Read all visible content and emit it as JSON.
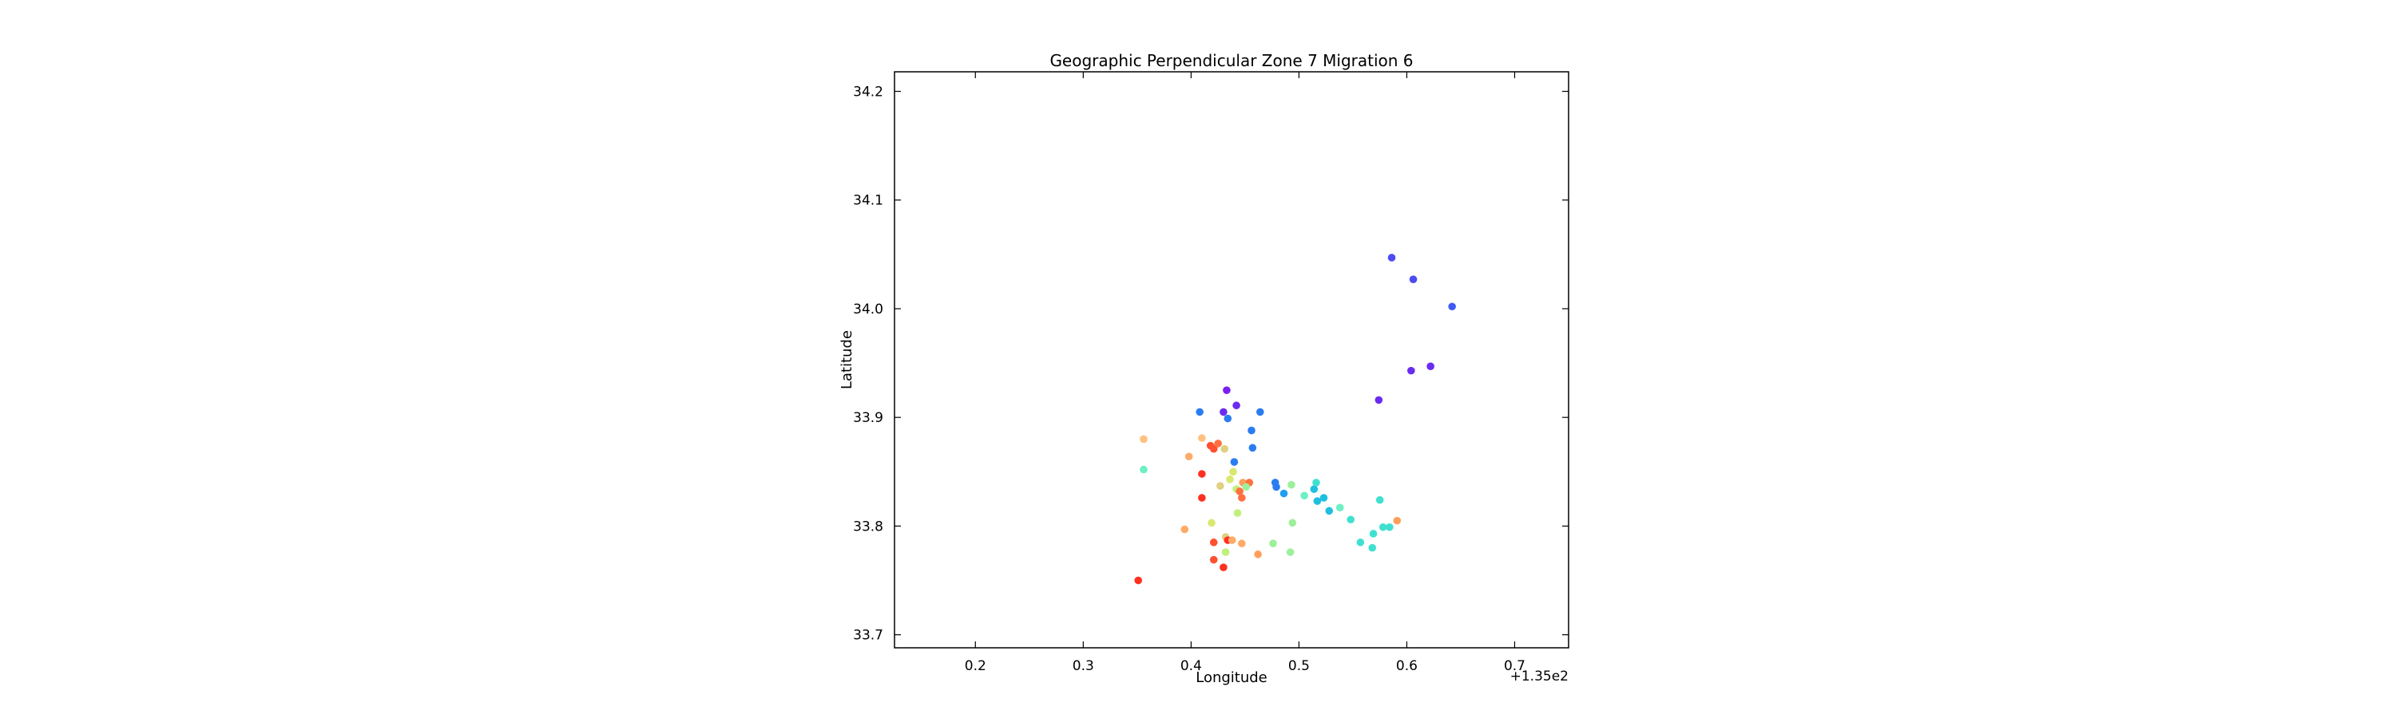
{
  "chart_data": {
    "type": "scatter",
    "title": "Geographic Perpendicular Zone 7 Migration 6",
    "xlabel": "Longitude",
    "ylabel": "Latitude",
    "x_offset_label": "+1.35e2",
    "xlim": [
      135.125,
      135.75
    ],
    "ylim": [
      33.688,
      34.218
    ],
    "xticks": [
      135.2,
      135.3,
      135.4,
      135.5,
      135.6,
      135.7
    ],
    "xtick_labels": [
      "0.2",
      "0.3",
      "0.4",
      "0.5",
      "0.6",
      "0.7"
    ],
    "yticks": [
      33.7,
      33.8,
      33.9,
      34.0,
      34.1,
      34.2
    ],
    "ytick_labels": [
      "33.7",
      "33.8",
      "33.9",
      "34.0",
      "34.1",
      "34.2"
    ],
    "grid": false,
    "legend": "none",
    "colormap": "rainbow",
    "points": [
      {
        "x": 135.586,
        "y": 34.047,
        "color": "#4c4cf2"
      },
      {
        "x": 135.606,
        "y": 34.027,
        "color": "#4c4cf2"
      },
      {
        "x": 135.642,
        "y": 34.002,
        "color": "#3f5af4"
      },
      {
        "x": 135.622,
        "y": 33.947,
        "color": "#6a2cf0"
      },
      {
        "x": 135.604,
        "y": 33.943,
        "color": "#6a2cf0"
      },
      {
        "x": 135.574,
        "y": 33.916,
        "color": "#6a2cf0"
      },
      {
        "x": 135.433,
        "y": 33.925,
        "color": "#7a1ff0"
      },
      {
        "x": 135.442,
        "y": 33.911,
        "color": "#6a2cf0"
      },
      {
        "x": 135.43,
        "y": 33.905,
        "color": "#6a2cf0"
      },
      {
        "x": 135.408,
        "y": 33.905,
        "color": "#2b7cf0"
      },
      {
        "x": 135.434,
        "y": 33.899,
        "color": "#2b7cf0"
      },
      {
        "x": 135.464,
        "y": 33.905,
        "color": "#2b7cf0"
      },
      {
        "x": 135.456,
        "y": 33.888,
        "color": "#2b7cf0"
      },
      {
        "x": 135.457,
        "y": 33.872,
        "color": "#2b7cf0"
      },
      {
        "x": 135.44,
        "y": 33.859,
        "color": "#2b7cf0"
      },
      {
        "x": 135.478,
        "y": 33.84,
        "color": "#2b7cf0"
      },
      {
        "x": 135.479,
        "y": 33.836,
        "color": "#2b7cf0"
      },
      {
        "x": 135.486,
        "y": 33.83,
        "color": "#1f9ff0"
      },
      {
        "x": 135.514,
        "y": 33.834,
        "color": "#1fbfe0"
      },
      {
        "x": 135.517,
        "y": 33.823,
        "color": "#1fbfe0"
      },
      {
        "x": 135.523,
        "y": 33.826,
        "color": "#1fbfe0"
      },
      {
        "x": 135.528,
        "y": 33.814,
        "color": "#1fbfe0"
      },
      {
        "x": 135.516,
        "y": 33.84,
        "color": "#40e0d0"
      },
      {
        "x": 135.538,
        "y": 33.817,
        "color": "#6cf0c4"
      },
      {
        "x": 135.548,
        "y": 33.806,
        "color": "#40e0d0"
      },
      {
        "x": 135.557,
        "y": 33.785,
        "color": "#40e0d0"
      },
      {
        "x": 135.568,
        "y": 33.78,
        "color": "#40e0d0"
      },
      {
        "x": 135.569,
        "y": 33.793,
        "color": "#40e0d0"
      },
      {
        "x": 135.575,
        "y": 33.824,
        "color": "#40e0d0"
      },
      {
        "x": 135.578,
        "y": 33.799,
        "color": "#40e0d0"
      },
      {
        "x": 135.584,
        "y": 33.799,
        "color": "#40e0d0"
      },
      {
        "x": 135.591,
        "y": 33.805,
        "color": "#ff9f5a"
      },
      {
        "x": 135.356,
        "y": 33.852,
        "color": "#6cf0c4"
      },
      {
        "x": 135.356,
        "y": 33.88,
        "color": "#ffc080"
      },
      {
        "x": 135.398,
        "y": 33.864,
        "color": "#ffaa66"
      },
      {
        "x": 135.41,
        "y": 33.881,
        "color": "#ffc080"
      },
      {
        "x": 135.418,
        "y": 33.874,
        "color": "#ff5030"
      },
      {
        "x": 135.421,
        "y": 33.871,
        "color": "#ff5030"
      },
      {
        "x": 135.425,
        "y": 33.876,
        "color": "#ff7040"
      },
      {
        "x": 135.431,
        "y": 33.871,
        "color": "#e0d080"
      },
      {
        "x": 135.41,
        "y": 33.848,
        "color": "#ff3020"
      },
      {
        "x": 135.41,
        "y": 33.826,
        "color": "#ff3020"
      },
      {
        "x": 135.427,
        "y": 33.837,
        "color": "#e0d080"
      },
      {
        "x": 135.436,
        "y": 33.843,
        "color": "#d8e870"
      },
      {
        "x": 135.439,
        "y": 33.85,
        "color": "#d8e870"
      },
      {
        "x": 135.442,
        "y": 33.834,
        "color": "#c0f07a"
      },
      {
        "x": 135.445,
        "y": 33.832,
        "color": "#ff7040"
      },
      {
        "x": 135.447,
        "y": 33.826,
        "color": "#ff7040"
      },
      {
        "x": 135.448,
        "y": 33.84,
        "color": "#ff9f5a"
      },
      {
        "x": 135.454,
        "y": 33.84,
        "color": "#ff7040"
      },
      {
        "x": 135.451,
        "y": 33.836,
        "color": "#9cf09a"
      },
      {
        "x": 135.443,
        "y": 33.812,
        "color": "#c0f07a"
      },
      {
        "x": 135.419,
        "y": 33.803,
        "color": "#d8e870"
      },
      {
        "x": 135.394,
        "y": 33.797,
        "color": "#ffaa66"
      },
      {
        "x": 135.421,
        "y": 33.785,
        "color": "#ff5030"
      },
      {
        "x": 135.432,
        "y": 33.79,
        "color": "#e0d080"
      },
      {
        "x": 135.434,
        "y": 33.787,
        "color": "#ff3020"
      },
      {
        "x": 135.438,
        "y": 33.787,
        "color": "#ffaa66"
      },
      {
        "x": 135.432,
        "y": 33.776,
        "color": "#c0f07a"
      },
      {
        "x": 135.421,
        "y": 33.769,
        "color": "#ff5030"
      },
      {
        "x": 135.43,
        "y": 33.762,
        "color": "#ff3020"
      },
      {
        "x": 135.447,
        "y": 33.784,
        "color": "#ffaa66"
      },
      {
        "x": 135.462,
        "y": 33.774,
        "color": "#ff9f5a"
      },
      {
        "x": 135.476,
        "y": 33.784,
        "color": "#9cf09a"
      },
      {
        "x": 135.492,
        "y": 33.776,
        "color": "#9cf09a"
      },
      {
        "x": 135.494,
        "y": 33.803,
        "color": "#9cf09a"
      },
      {
        "x": 135.493,
        "y": 33.838,
        "color": "#9cf09a"
      },
      {
        "x": 135.505,
        "y": 33.828,
        "color": "#6cf0c4"
      },
      {
        "x": 135.351,
        "y": 33.75,
        "color": "#ff3020"
      }
    ]
  }
}
